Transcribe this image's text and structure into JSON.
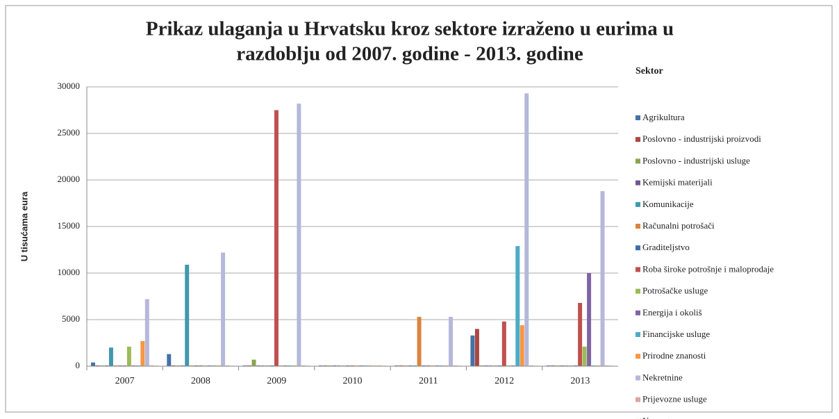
{
  "chart_data": {
    "type": "bar",
    "title": [
      "Prikaz ulaganja u Hrvatsku kroz sektore izraženo u eurima u",
      "razdoblju od 2007. godine - 2013. godine"
    ],
    "y_label": "U tisućama eura",
    "legend_title": "Sektor",
    "categories": [
      "2007",
      "2008",
      "2009",
      "2010",
      "2011",
      "2012",
      "2013"
    ],
    "ylim": [
      0,
      30000
    ],
    "yticks": [
      0,
      5000,
      10000,
      15000,
      20000,
      25000,
      30000
    ],
    "grid": true,
    "legend": "right",
    "series": [
      {
        "name": "Agrikultura",
        "color": "#4572a7",
        "values": [
          400,
          1300,
          80,
          80,
          80,
          3300,
          80
        ]
      },
      {
        "name": "Poslovno - industrijski proizvodi",
        "color": "#aa4643",
        "values": [
          80,
          80,
          80,
          80,
          80,
          4000,
          80
        ]
      },
      {
        "name": "Poslovno - industrijski usluge",
        "color": "#89a54e",
        "values": [
          80,
          80,
          700,
          80,
          80,
          80,
          80
        ]
      },
      {
        "name": "Kemijski materijali",
        "color": "#71588f",
        "values": [
          80,
          80,
          80,
          80,
          80,
          80,
          80
        ]
      },
      {
        "name": "Komunikacije",
        "color": "#4198af",
        "values": [
          2000,
          10900,
          80,
          80,
          80,
          80,
          80
        ]
      },
      {
        "name": "Računalni potrošači",
        "color": "#db843d",
        "values": [
          80,
          80,
          80,
          80,
          5300,
          80,
          80
        ]
      },
      {
        "name": "Graditeljstvo",
        "color": "#3d6fa8",
        "values": [
          80,
          80,
          80,
          80,
          80,
          80,
          80
        ]
      },
      {
        "name": "Roba široke potrošnje i maloprodaje",
        "color": "#c0504d",
        "values": [
          80,
          80,
          27500,
          80,
          80,
          4800,
          6800
        ]
      },
      {
        "name": "Potrošačke usluge",
        "color": "#9bbb59",
        "values": [
          2100,
          80,
          80,
          80,
          80,
          80,
          2100
        ]
      },
      {
        "name": "Energija i okoliš",
        "color": "#7f64a2",
        "values": [
          80,
          80,
          80,
          80,
          80,
          80,
          10000
        ]
      },
      {
        "name": "Financijske usluge",
        "color": "#4bacc6",
        "values": [
          80,
          80,
          80,
          80,
          80,
          12900,
          80
        ]
      },
      {
        "name": "Prirodne znanosti",
        "color": "#f79646",
        "values": [
          2700,
          80,
          80,
          80,
          80,
          4400,
          80
        ]
      },
      {
        "name": "Nekretnine",
        "color": "#b5b8d9",
        "values": [
          7200,
          12200,
          28200,
          80,
          5300,
          29300,
          18800
        ]
      },
      {
        "name": "Prijevozne usluge",
        "color": "#d9a6a4",
        "values": [
          80,
          80,
          80,
          80,
          80,
          80,
          80
        ]
      },
      {
        "name": "Nesvrstane",
        "color": "#d7e4bd",
        "values": [
          80,
          80,
          80,
          80,
          80,
          80,
          80
        ]
      }
    ]
  }
}
